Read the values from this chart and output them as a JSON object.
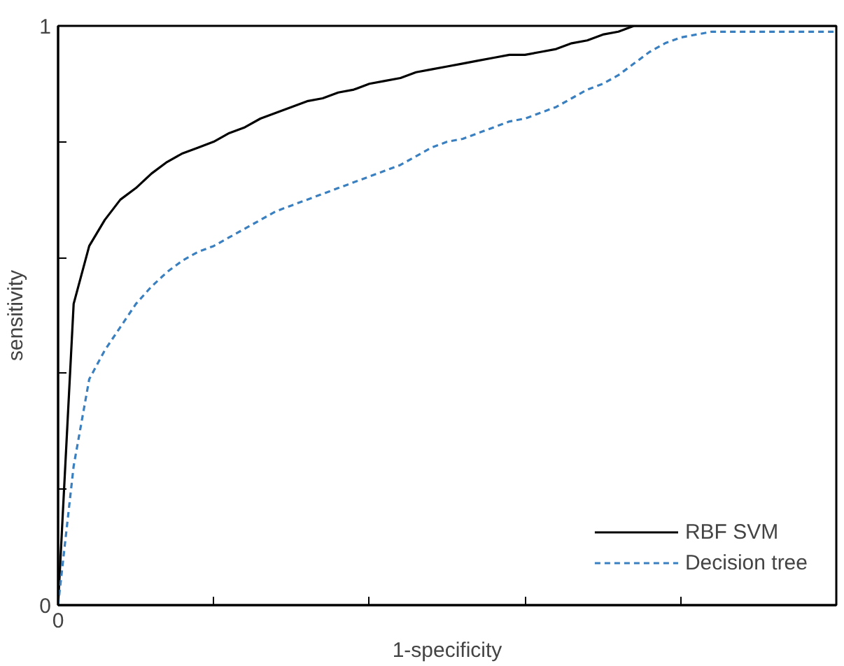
{
  "chart_data": {
    "type": "line",
    "xlabel": "1-specificity",
    "ylabel": "sensitivity",
    "categories": [
      "0",
      null,
      null,
      null,
      null,
      null,
      null,
      null,
      null,
      null,
      null,
      null,
      null,
      null,
      null,
      null,
      null,
      null,
      null,
      null,
      null,
      null,
      null,
      null,
      null,
      null,
      null,
      null,
      null,
      null,
      null,
      null,
      null,
      null,
      null,
      null,
      null,
      null,
      null,
      null,
      null,
      null,
      null,
      null,
      null,
      null,
      null,
      null,
      null,
      null,
      null
    ],
    "ylim": [
      0,
      1
    ],
    "yticks": [
      {
        "value": 0,
        "label": "0"
      },
      {
        "value": 0.2,
        "label": null
      },
      {
        "value": 0.4,
        "label": null
      },
      {
        "value": 0.6,
        "label": null
      },
      {
        "value": 0.8,
        "label": null
      },
      {
        "value": 1,
        "label": "1"
      }
    ],
    "grid": false,
    "legend": "bottom right",
    "marker": "none",
    "series": [
      {
        "name": "RBF SVM",
        "color": "#000000",
        "line_style": "solid",
        "values": [
          0,
          0.52,
          0.62,
          0.665,
          0.7,
          0.72,
          0.745,
          0.765,
          0.78,
          0.79,
          0.8,
          0.815,
          0.825,
          0.84,
          0.85,
          0.86,
          0.87,
          0.875,
          0.885,
          0.89,
          0.9,
          0.905,
          0.91,
          0.92,
          0.925,
          0.93,
          0.935,
          0.94,
          0.945,
          0.95,
          0.95,
          0.955,
          0.96,
          0.97,
          0.975,
          0.985,
          0.99,
          1,
          1,
          1,
          1,
          1,
          1,
          1,
          1,
          1,
          1,
          1,
          1,
          1,
          1
        ]
      },
      {
        "name": "Decision tree",
        "color": "#3a80c0",
        "line_style": "dashed",
        "values": [
          0,
          0.24,
          0.39,
          0.44,
          0.48,
          0.52,
          0.55,
          0.575,
          0.595,
          0.61,
          0.62,
          0.635,
          0.65,
          0.665,
          0.68,
          0.69,
          0.7,
          0.71,
          0.72,
          0.73,
          0.74,
          0.75,
          0.76,
          0.775,
          0.79,
          0.8,
          0.805,
          0.815,
          0.825,
          0.835,
          0.84,
          0.85,
          0.86,
          0.875,
          0.89,
          0.9,
          0.915,
          0.935,
          0.955,
          0.97,
          0.98,
          0.985,
          0.99,
          0.99,
          0.99,
          0.99,
          0.99,
          0.99,
          0.99,
          0.99,
          0.99
        ]
      }
    ]
  }
}
